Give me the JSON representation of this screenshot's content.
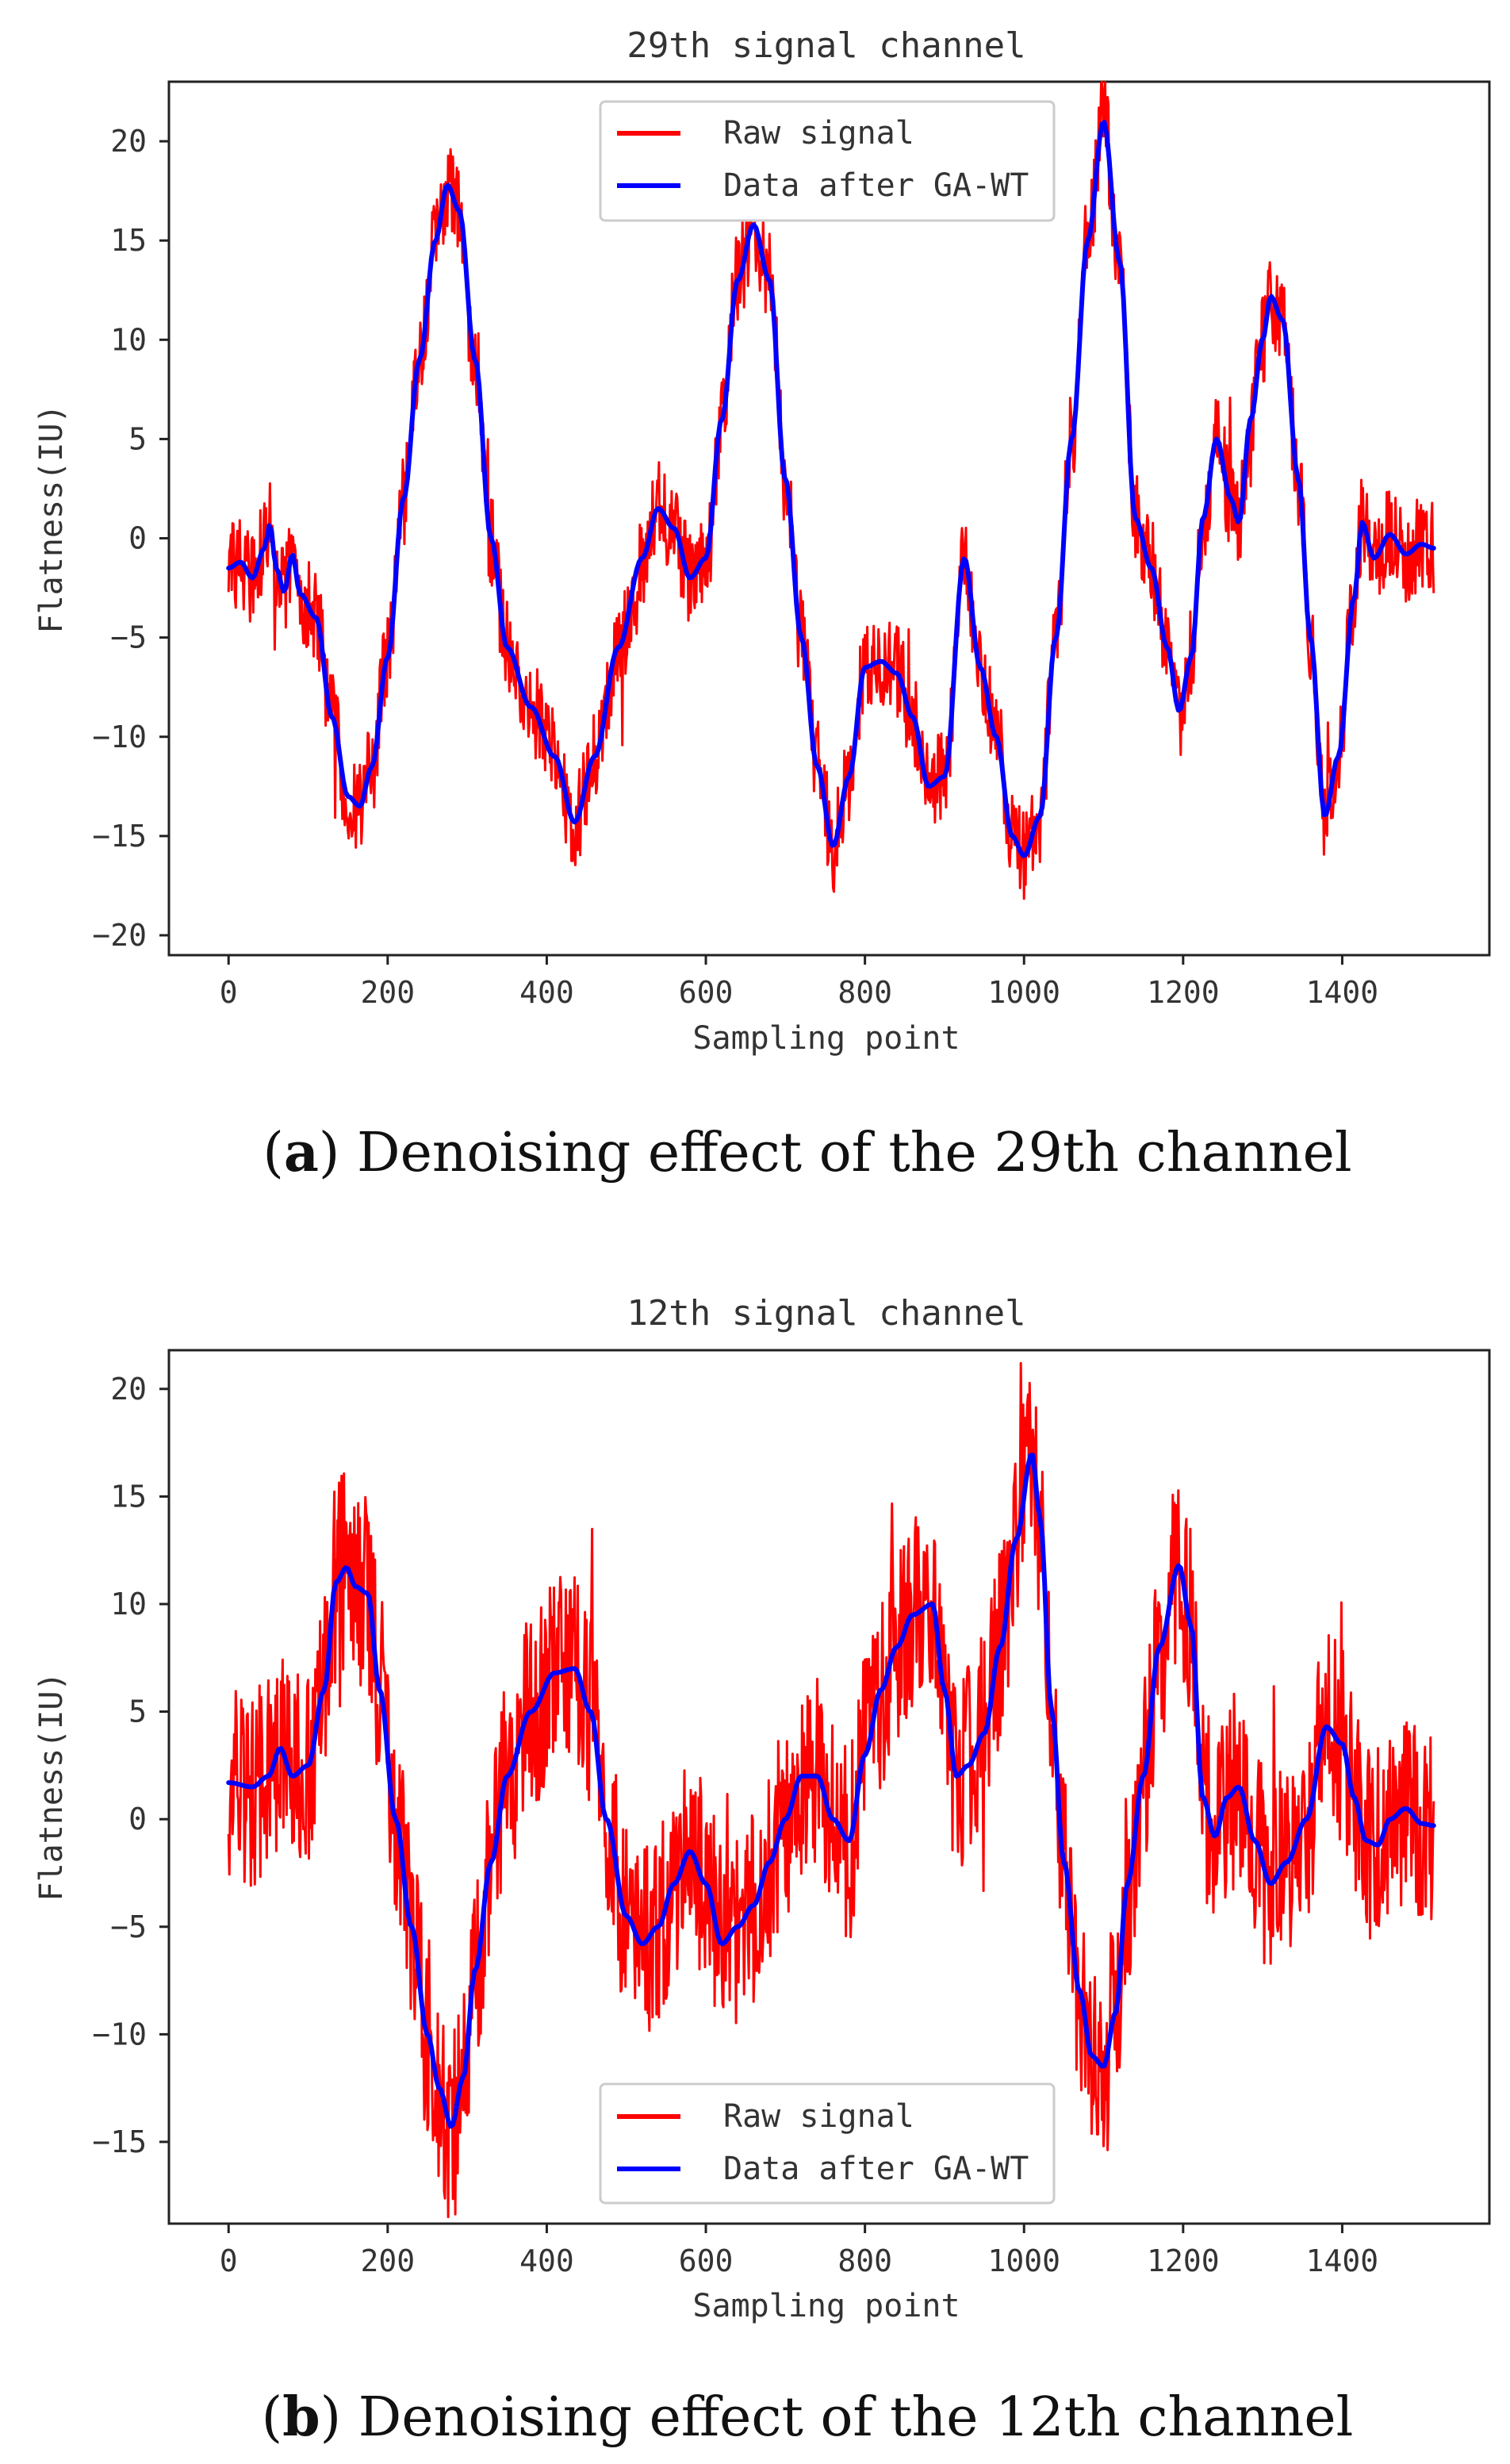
{
  "chart_data": [
    {
      "type": "line",
      "title": "29th signal channel",
      "xlabel": "Sampling point",
      "ylabel": "Flatness(IU)",
      "xlim": [
        -75,
        1585
      ],
      "ylim": [
        -21,
        23
      ],
      "xticks": [
        0,
        200,
        400,
        600,
        800,
        1000,
        1200,
        1400
      ],
      "yticks": [
        -20,
        -15,
        -10,
        -5,
        0,
        5,
        10,
        15,
        20
      ],
      "legend_position": "upper center",
      "caption_letter": "a",
      "caption_text": ") Denoising effect of the 29th channel",
      "noise_amp": 2.4,
      "noise_seed": 29,
      "series": [
        {
          "name": "Raw signal",
          "color": "#ff0000",
          "derived_from": "Data after GA-WT"
        },
        {
          "name": "Data after GA-WT",
          "color": "#0000ff",
          "x": [
            0,
            15,
            30,
            45,
            52,
            60,
            70,
            80,
            90,
            110,
            130,
            150,
            165,
            180,
            200,
            220,
            240,
            260,
            275,
            290,
            310,
            330,
            350,
            380,
            410,
            435,
            460,
            490,
            520,
            540,
            560,
            580,
            600,
            620,
            640,
            660,
            680,
            700,
            720,
            740,
            760,
            780,
            800,
            820,
            840,
            860,
            880,
            900,
            925,
            945,
            965,
            985,
            1000,
            1020,
            1040,
            1060,
            1080,
            1100,
            1120,
            1140,
            1160,
            1180,
            1195,
            1210,
            1225,
            1242,
            1260,
            1270,
            1285,
            1300,
            1310,
            1325,
            1345,
            1360,
            1378,
            1395,
            1415,
            1425,
            1440,
            1460,
            1480,
            1500,
            1515
          ],
          "y": [
            -1.5,
            -1.2,
            -2.0,
            -0.5,
            0.7,
            -1.5,
            -2.7,
            -0.8,
            -2.8,
            -4.0,
            -9.0,
            -13.0,
            -13.5,
            -11.5,
            -6.0,
            2.0,
            9.0,
            15.0,
            17.8,
            16.5,
            9.0,
            0.0,
            -5.5,
            -8.5,
            -11.0,
            -14.3,
            -11.0,
            -5.5,
            -1.0,
            1.5,
            0.5,
            -2.0,
            -1.0,
            6.0,
            13.0,
            15.8,
            13.0,
            3.0,
            -5.0,
            -11.5,
            -15.5,
            -12.0,
            -6.5,
            -6.2,
            -6.8,
            -9.0,
            -12.5,
            -12.0,
            -1.0,
            -6.5,
            -10.0,
            -15.0,
            -16.0,
            -14.0,
            -5.0,
            5.0,
            15.0,
            21.0,
            14.0,
            1.0,
            -1.5,
            -5.5,
            -8.7,
            -6.0,
            1.0,
            5.0,
            2.0,
            0.8,
            6.0,
            10.0,
            12.2,
            11.0,
            3.0,
            -5.0,
            -14.0,
            -11.0,
            -3.0,
            0.8,
            -1.0,
            0.2,
            -0.8,
            -0.3,
            -0.5
          ]
        }
      ]
    },
    {
      "type": "line",
      "title": "12th signal channel",
      "xlabel": "Sampling point",
      "ylabel": "Flatness(IU)",
      "xlim": [
        -75,
        1585
      ],
      "ylim": [
        -18.8,
        21.8
      ],
      "xticks": [
        0,
        200,
        400,
        600,
        800,
        1000,
        1200,
        1400
      ],
      "yticks": [
        -15,
        -10,
        -5,
        0,
        5,
        10,
        15,
        20
      ],
      "legend_position": "lower center",
      "caption_letter": "b",
      "caption_text": ") Denoising effect of the 12th channel",
      "noise_amp": 4.6,
      "noise_seed": 12,
      "series": [
        {
          "name": "Raw signal",
          "color": "#ff0000",
          "derived_from": "Data after GA-WT"
        },
        {
          "name": "Data after GA-WT",
          "color": "#0000ff",
          "x": [
            0,
            30,
            50,
            65,
            80,
            100,
            120,
            135,
            148,
            160,
            175,
            190,
            210,
            230,
            250,
            265,
            280,
            295,
            310,
            330,
            350,
            380,
            410,
            435,
            455,
            475,
            500,
            520,
            540,
            560,
            580,
            600,
            620,
            640,
            660,
            680,
            700,
            720,
            740,
            760,
            780,
            800,
            820,
            840,
            860,
            885,
            900,
            915,
            930,
            950,
            970,
            990,
            1010,
            1020,
            1035,
            1050,
            1070,
            1085,
            1100,
            1115,
            1130,
            1150,
            1170,
            1195,
            1210,
            1225,
            1240,
            1255,
            1270,
            1290,
            1310,
            1330,
            1355,
            1380,
            1400,
            1415,
            1430,
            1445,
            1460,
            1480,
            1500,
            1515
          ],
          "y": [
            1.7,
            1.5,
            2.0,
            3.3,
            2.0,
            2.5,
            6.0,
            11.0,
            11.7,
            10.8,
            10.5,
            6.0,
            0.0,
            -5.0,
            -10.0,
            -12.5,
            -14.3,
            -12.0,
            -7.0,
            -2.0,
            2.0,
            5.0,
            6.8,
            7.0,
            5.0,
            0.0,
            -4.5,
            -5.8,
            -5.0,
            -3.0,
            -1.5,
            -3.0,
            -5.8,
            -5.0,
            -4.0,
            -2.0,
            0.0,
            2.0,
            2.0,
            0.0,
            -1.0,
            3.0,
            6.0,
            8.0,
            9.5,
            10.0,
            6.0,
            2.0,
            2.5,
            4.0,
            8.0,
            13.0,
            17.0,
            14.0,
            5.0,
            -2.0,
            -8.0,
            -11.0,
            -11.5,
            -9.0,
            -3.0,
            2.0,
            8.0,
            11.8,
            9.0,
            1.0,
            -0.8,
            1.0,
            1.5,
            -1.0,
            -3.0,
            -2.0,
            0.0,
            4.3,
            3.5,
            1.0,
            -1.0,
            -1.2,
            0.0,
            0.5,
            -0.2,
            -0.3
          ]
        }
      ]
    }
  ]
}
